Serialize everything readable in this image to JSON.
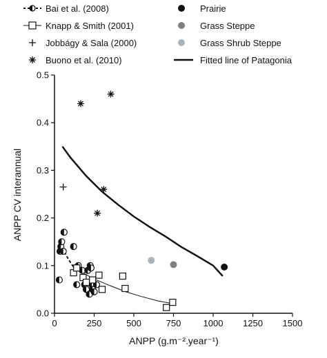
{
  "chart_data": {
    "type": "scatter",
    "xlabel": "ANPP (g.m⁻².year⁻¹)",
    "ylabel": "ANPP CV interannual",
    "xlim": [
      0,
      1500
    ],
    "ylim": [
      0,
      0.5
    ],
    "x_ticks": [
      "0",
      "250",
      "500",
      "750",
      "1000",
      "1250",
      "1500"
    ],
    "y_ticks": [
      "0.0",
      "0.1",
      "0.2",
      "0.3",
      "0.4",
      "0.5"
    ],
    "grid": false,
    "legend": {
      "placement": "top",
      "sources": [
        {
          "name": "Bai et al. (2008)",
          "marker": "half-filled-circle",
          "line": "dashed"
        },
        {
          "name": "Knapp & Smith (2001)",
          "marker": "open-square",
          "line": "solid-thin"
        },
        {
          "name": "Jobbágy & Sala (2000)",
          "marker": "plus"
        },
        {
          "name": "Buono et al. (2010)",
          "marker": "asterisk"
        }
      ],
      "ecosystems": [
        {
          "name": "Prairie",
          "color": "#111111"
        },
        {
          "name": "Grass Steppe",
          "color": "#808080"
        },
        {
          "name": "Grass Shrub Steppe",
          "color": "#a9b3bc"
        },
        {
          "name": "Fitted line of Patagonia",
          "line": "solid-thick"
        }
      ]
    },
    "series": [
      {
        "name": "Bai et al. (2008)",
        "marker": "half-filled-circle",
        "points": [
          [
            30,
            0.07
          ],
          [
            35,
            0.13
          ],
          [
            40,
            0.14
          ],
          [
            45,
            0.15
          ],
          [
            55,
            0.13
          ],
          [
            60,
            0.17
          ],
          [
            120,
            0.14
          ],
          [
            140,
            0.06
          ],
          [
            150,
            0.1
          ],
          [
            175,
            0.09
          ],
          [
            190,
            0.06
          ],
          [
            200,
            0.05
          ],
          [
            210,
            0.09
          ],
          [
            220,
            0.04
          ],
          [
            225,
            0.1
          ],
          [
            230,
            0.095
          ],
          [
            235,
            0.06
          ],
          [
            240,
            0.05
          ],
          [
            250,
            0.045
          ],
          [
            265,
            0.06
          ]
        ]
      },
      {
        "name": "Knapp & Smith (2001)",
        "marker": "open-square",
        "points": [
          [
            120,
            0.085
          ],
          [
            140,
            0.095
          ],
          [
            180,
            0.075
          ],
          [
            200,
            0.065
          ],
          [
            240,
            0.07
          ],
          [
            280,
            0.08
          ],
          [
            300,
            0.05
          ],
          [
            430,
            0.078
          ],
          [
            445,
            0.052
          ],
          [
            705,
            0.012
          ],
          [
            745,
            0.023
          ]
        ]
      },
      {
        "name": "Jobbágy & Sala (2000)",
        "marker": "plus",
        "points": [
          [
            55,
            0.265
          ]
        ]
      },
      {
        "name": "Buono et al. (2010)",
        "marker": "asterisk",
        "points": [
          [
            165,
            0.44
          ],
          [
            355,
            0.46
          ],
          [
            310,
            0.26
          ],
          [
            270,
            0.21
          ]
        ]
      },
      {
        "name": "Prairie",
        "marker": "filled-circle",
        "color": "#111111",
        "points": [
          [
            1070,
            0.097
          ]
        ]
      },
      {
        "name": "Grass Steppe",
        "marker": "filled-circle",
        "color": "#808080",
        "points": [
          [
            750,
            0.102
          ]
        ]
      },
      {
        "name": "Grass Shrub Steppe",
        "marker": "filled-circle",
        "color": "#a9b3bc",
        "points": [
          [
            610,
            0.111
          ]
        ]
      }
    ],
    "lines": [
      {
        "name": "Fitted line of Patagonia",
        "style": "solid-thick",
        "points": [
          [
            50,
            0.35
          ],
          [
            100,
            0.327
          ],
          [
            200,
            0.288
          ],
          [
            300,
            0.255
          ],
          [
            400,
            0.228
          ],
          [
            500,
            0.203
          ],
          [
            600,
            0.181
          ],
          [
            700,
            0.161
          ],
          [
            800,
            0.139
          ],
          [
            900,
            0.12
          ],
          [
            1000,
            0.1
          ],
          [
            1060,
            0.078
          ]
        ]
      },
      {
        "name": "Bai et al. (2008)",
        "style": "dashed",
        "points": [
          [
            40,
            0.135
          ],
          [
            60,
            0.13
          ],
          [
            80,
            0.118
          ],
          [
            100,
            0.107
          ],
          [
            120,
            0.097
          ],
          [
            140,
            0.09
          ]
        ]
      },
      {
        "name": "Knapp & Smith (2001)",
        "style": "solid-thin",
        "points": [
          [
            140,
            0.092
          ],
          [
            250,
            0.072
          ],
          [
            350,
            0.058
          ],
          [
            450,
            0.045
          ],
          [
            550,
            0.035
          ],
          [
            650,
            0.026
          ],
          [
            750,
            0.02
          ]
        ]
      }
    ]
  }
}
